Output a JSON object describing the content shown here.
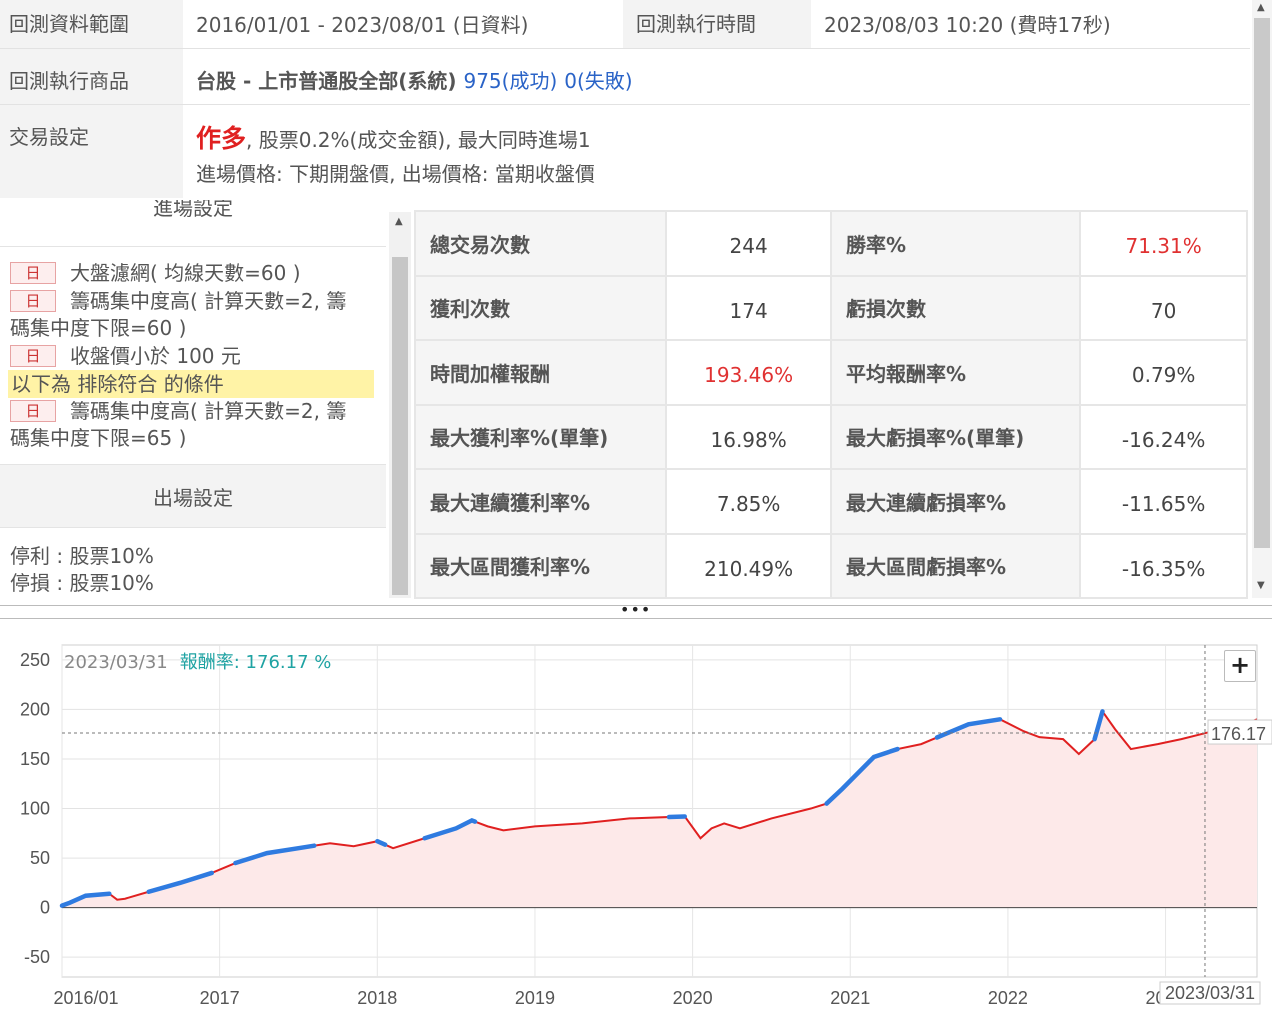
{
  "info": {
    "range_label": "回測資料範圍",
    "range_value": "2016/01/01 - 2023/08/01 (日資料)",
    "exec_time_label": "回測執行時間",
    "exec_time_value": "2023/08/03 10:20 (費時17秒)",
    "product_label": "回測執行商品",
    "product_value": "台股 - 上市普通股全部(系統)",
    "success_text": "975(成功)",
    "fail_text": "0(失敗)",
    "trade_label": "交易設定",
    "trade_direction": "作多",
    "trade_rest": ", 股票0.2%(成交金額), 最大同時進場1",
    "price_line": "進場價格: 下期開盤價, 出場價格: 當期收盤價"
  },
  "entry": {
    "title": "進場設定",
    "conditions": [
      {
        "tag": "日",
        "text": "大盤濾網( 均線天數=60 )"
      },
      {
        "tag": "日",
        "text": "籌碼集中度高( 計算天數=2, 籌",
        "cont": "碼集中度下限=60 )"
      },
      {
        "tag": "日",
        "text": "收盤價小於 100 元"
      }
    ],
    "exclude_note": "以下為 排除符合 的條件",
    "exclude_conditions": [
      {
        "tag": "日",
        "text": "籌碼集中度高( 計算天數=2, 籌",
        "cont": "碼集中度下限=65 )"
      }
    ]
  },
  "exit": {
    "title": "出場設定",
    "take_profit": "停利 : 股票10%",
    "stop_loss": "停損 : 股票10%"
  },
  "stats": [
    {
      "k1": "總交易次數",
      "v1": "244",
      "k2": "勝率%",
      "v2": "71.31%",
      "v2_red": true
    },
    {
      "k1": "獲利次數",
      "v1": "174",
      "k2": "虧損次數",
      "v2": "70"
    },
    {
      "k1": "時間加權報酬",
      "v1": "193.46%",
      "v1_red": true,
      "k2": "平均報酬率%",
      "v2": "0.79%"
    },
    {
      "k1": "最大獲利率%(單筆)",
      "v1": "16.98%",
      "k2": "最大虧損率%(單筆)",
      "v2": "-16.24%"
    },
    {
      "k1": "最大連續獲利率%",
      "v1": "7.85%",
      "k2": "最大連續虧損率%",
      "v2": "-11.65%"
    },
    {
      "k1": "最大區間獲利率%",
      "v1": "210.49%",
      "k2": "最大區間虧損率%",
      "v2": "-16.35%"
    }
  ],
  "splitter_glyph": "•••",
  "chart_header": {
    "date": "2023/03/31",
    "return_text": "報酬率: 176.17 %"
  },
  "zoom_glyph": "+",
  "colors": {
    "line": "#e02020",
    "new_high": "#2f7be0",
    "area": "#fde9e9",
    "stat_red": "#e03131"
  },
  "chart_data": {
    "type": "area",
    "title": "",
    "xlabel": "",
    "ylabel": "",
    "ylim": [
      -70,
      265
    ],
    "yticks": [
      250,
      200,
      150,
      100,
      50,
      0,
      -50
    ],
    "xtick_labels": [
      "2016/01",
      "2017",
      "2018",
      "2019",
      "2020",
      "2021",
      "2022",
      "2023"
    ],
    "cursor": {
      "date": "2023/03/31",
      "value": 176.17,
      "label": "176.17",
      "date_label": "2023/03/31"
    },
    "series": [
      {
        "x": [
          2016.0,
          2016.05,
          2016.15,
          2016.3,
          2016.35,
          2016.4,
          2016.55,
          2016.75,
          2016.95,
          2017.1,
          2017.3,
          2017.5,
          2017.7,
          2017.85,
          2018.0,
          2018.1,
          2018.3,
          2018.5,
          2018.6,
          2018.7,
          2018.8,
          2019.0,
          2019.3,
          2019.6,
          2019.95,
          2020.05,
          2020.12,
          2020.2,
          2020.3,
          2020.5,
          2020.75,
          2020.85,
          2020.95,
          2021.15,
          2021.3,
          2021.45,
          2021.6,
          2021.75,
          2021.95,
          2022.1,
          2022.2,
          2022.35,
          2022.45,
          2022.55,
          2022.6,
          2022.68,
          2022.78,
          2022.95,
          2023.1,
          2023.25,
          2023.35,
          2023.5,
          2023.58
        ],
        "y": [
          2,
          5,
          12,
          14,
          8,
          9,
          16,
          25,
          35,
          45,
          55,
          60,
          65,
          62,
          67,
          60,
          70,
          80,
          88,
          82,
          78,
          82,
          85,
          90,
          92,
          70,
          80,
          85,
          80,
          90,
          100,
          105,
          120,
          152,
          160,
          165,
          175,
          185,
          190,
          178,
          172,
          170,
          155,
          170,
          198,
          180,
          160,
          165,
          170,
          176,
          180,
          185,
          190
        ]
      }
    ],
    "new_high_segments": [
      [
        2016.0,
        2016.3
      ],
      [
        2016.55,
        2016.95
      ],
      [
        2017.1,
        2017.6
      ],
      [
        2018.0,
        2018.05
      ],
      [
        2018.3,
        2018.62
      ],
      [
        2019.85,
        2019.95
      ],
      [
        2020.85,
        2021.3
      ],
      [
        2021.55,
        2021.95
      ],
      [
        2022.55,
        2022.6
      ]
    ]
  }
}
